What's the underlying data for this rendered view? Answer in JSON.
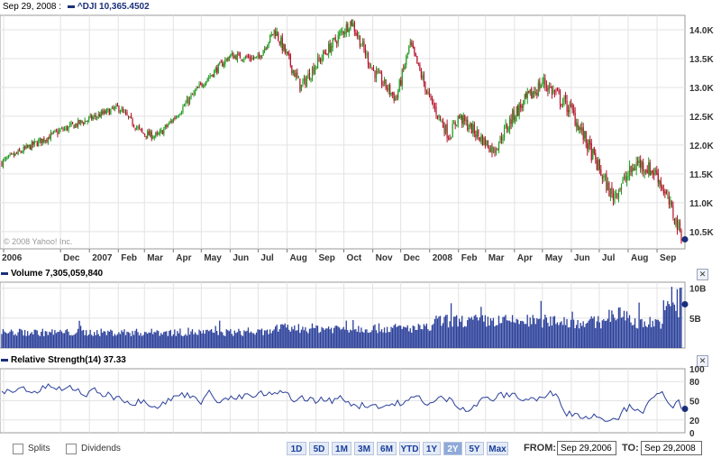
{
  "main": {
    "date": "Sep 29, 2008 :",
    "symbol": "^DJI",
    "value": "10,365.4502",
    "copyright": "© 2008 Yahoo! Inc."
  },
  "volume": {
    "label": "Volume",
    "value": "7,305,059,840"
  },
  "rsi": {
    "label": "Relative Strength(14)",
    "value": "37.33"
  },
  "controls": {
    "splits": "Splits",
    "dividends": "Dividends",
    "ranges": [
      "1D",
      "5D",
      "1M",
      "3M",
      "6M",
      "YTD",
      "1Y",
      "2Y",
      "5Y",
      "Max"
    ],
    "active_range": "2Y",
    "from_label": "FROM:",
    "from_value": "Sep 29,2006",
    "to_label": "TO:",
    "to_value": "Sep 29,2008"
  },
  "colors": {
    "up": "#1e9a1e",
    "down": "#b5122a",
    "accent": "#1a2f7a",
    "volume": "#2a3f9a",
    "rsi": "#2a3f9a"
  },
  "chart_data": [
    {
      "type": "candlestick",
      "title": "^DJI",
      "x_tick_labels": [
        "2006",
        "Dec",
        "2007",
        "Feb",
        "Mar",
        "Apr",
        "May",
        "Jun",
        "Jul",
        "Aug",
        "Sep",
        "Oct",
        "Nov",
        "Dec",
        "2008",
        "Feb",
        "Mar",
        "Apr",
        "May",
        "Jun",
        "Jul",
        "Aug",
        "Sep"
      ],
      "y_tick_labels": [
        "14.0K",
        "13.5K",
        "13.0K",
        "12.5K",
        "12.0K",
        "11.5K",
        "11.0K",
        "10.5K"
      ],
      "ylim": [
        10200,
        14250
      ],
      "x": [
        "2006-09-29",
        "2006-11-01",
        "2006-12-01",
        "2007-01-01",
        "2007-02-01",
        "2007-02-27",
        "2007-03-15",
        "2007-04-01",
        "2007-05-01",
        "2007-06-01",
        "2007-07-01",
        "2007-07-19",
        "2007-08-16",
        "2007-09-01",
        "2007-10-09",
        "2007-11-01",
        "2007-11-26",
        "2007-12-11",
        "2008-01-01",
        "2008-01-22",
        "2008-02-01",
        "2008-03-10",
        "2008-04-01",
        "2008-05-02",
        "2008-06-01",
        "2008-07-15",
        "2008-08-11",
        "2008-09-01",
        "2008-09-29"
      ],
      "close": [
        11700,
        12000,
        12250,
        12450,
        12650,
        12200,
        12150,
        12450,
        13050,
        13550,
        13500,
        14000,
        13000,
        13400,
        14150,
        13300,
        12800,
        13750,
        12800,
        12150,
        12500,
        11900,
        12550,
        13100,
        12600,
        11100,
        11700,
        11500,
        10365
      ],
      "grid": true
    },
    {
      "type": "bar",
      "title": "Volume",
      "y_tick_labels": [
        "10B",
        "5B"
      ],
      "ylim": [
        0,
        11000000000
      ],
      "last_value": 7305059840
    },
    {
      "type": "line",
      "title": "Relative Strength(14)",
      "y_tick_labels": [
        "100",
        "80",
        "50",
        "20",
        "0"
      ],
      "ylim": [
        0,
        100
      ],
      "last_value": 37.33
    }
  ]
}
